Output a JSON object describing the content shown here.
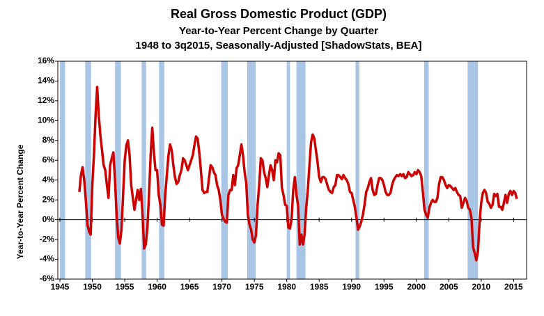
{
  "chart_data": {
    "type": "line",
    "title": "Real Gross Domestic Product (GDP)",
    "subtitle": "Year-to-Year Percent Change by Quarter",
    "subtitle2": "1948 to 3q2015, Seasonally-Adjusted [ShadowStats, BEA]",
    "y_label": "Year-to-Year Percent Change",
    "xlim": [
      1945,
      2017
    ],
    "xticks": [
      1945,
      1950,
      1955,
      1960,
      1965,
      1970,
      1975,
      1980,
      1985,
      1990,
      1995,
      2000,
      2005,
      2010,
      2015
    ],
    "ylim": [
      -6,
      16
    ],
    "yticks": [
      {
        "value": -6,
        "label": "-6%"
      },
      {
        "value": -4,
        "label": "-4%"
      },
      {
        "value": -2,
        "label": "-2%"
      },
      {
        "value": 0,
        "label": "0%"
      },
      {
        "value": 2,
        "label": "2%"
      },
      {
        "value": 4,
        "label": "4%"
      },
      {
        "value": 6,
        "label": "6%"
      },
      {
        "value": 8,
        "label": "8%"
      },
      {
        "value": 10,
        "label": "10%"
      },
      {
        "value": 12,
        "label": "12%"
      },
      {
        "value": 14,
        "label": "14%"
      },
      {
        "value": 16,
        "label": "16%"
      }
    ],
    "grid": false,
    "shading_color": "#a9c5e6",
    "shaded_periods": [
      [
        1945,
        1945.8
      ],
      [
        1948.9,
        1949.8
      ],
      [
        1953.5,
        1954.4
      ],
      [
        1957.6,
        1958.3
      ],
      [
        1960.3,
        1961.1
      ],
      [
        1969.9,
        1970.9
      ],
      [
        1973.9,
        1975.2
      ],
      [
        1980,
        1980.5
      ],
      [
        1981.5,
        1982.9
      ],
      [
        1990.6,
        1991.2
      ],
      [
        2001.2,
        2001.9
      ],
      [
        2007.9,
        2009.5
      ]
    ],
    "x": [
      1948,
      1948.25,
      1948.5,
      1948.75,
      1949,
      1949.25,
      1949.5,
      1949.75,
      1950,
      1950.25,
      1950.5,
      1950.75,
      1951,
      1951.25,
      1951.5,
      1951.75,
      1952,
      1952.25,
      1952.5,
      1952.75,
      1953,
      1953.25,
      1953.5,
      1953.75,
      1954,
      1954.25,
      1954.5,
      1954.75,
      1955,
      1955.25,
      1955.5,
      1955.75,
      1956,
      1956.25,
      1956.5,
      1956.75,
      1957,
      1957.25,
      1957.5,
      1957.75,
      1958,
      1958.25,
      1958.5,
      1958.75,
      1959,
      1959.25,
      1959.5,
      1959.75,
      1960,
      1960.25,
      1960.5,
      1960.75,
      1961,
      1961.25,
      1961.5,
      1961.75,
      1962,
      1962.25,
      1962.5,
      1962.75,
      1963,
      1963.25,
      1963.5,
      1963.75,
      1964,
      1964.25,
      1964.5,
      1964.75,
      1965,
      1965.25,
      1965.5,
      1965.75,
      1966,
      1966.25,
      1966.5,
      1966.75,
      1967,
      1967.25,
      1967.5,
      1967.75,
      1968,
      1968.25,
      1968.5,
      1968.75,
      1969,
      1969.25,
      1969.5,
      1969.75,
      1970,
      1970.25,
      1970.5,
      1970.75,
      1971,
      1971.25,
      1971.5,
      1971.75,
      1972,
      1972.25,
      1972.5,
      1972.75,
      1973,
      1973.25,
      1973.5,
      1973.75,
      1974,
      1974.25,
      1974.5,
      1974.75,
      1975,
      1975.25,
      1975.5,
      1975.75,
      1976,
      1976.25,
      1976.5,
      1976.75,
      1977,
      1977.25,
      1977.5,
      1977.75,
      1978,
      1978.25,
      1978.5,
      1978.75,
      1979,
      1979.25,
      1979.5,
      1979.75,
      1980,
      1980.25,
      1980.5,
      1980.75,
      1981,
      1981.25,
      1981.5,
      1981.75,
      1982,
      1982.25,
      1982.5,
      1982.75,
      1983,
      1983.25,
      1983.5,
      1983.75,
      1984,
      1984.25,
      1984.5,
      1984.75,
      1985,
      1985.25,
      1985.5,
      1985.75,
      1986,
      1986.25,
      1986.5,
      1986.75,
      1987,
      1987.25,
      1987.5,
      1987.75,
      1988,
      1988.25,
      1988.5,
      1988.75,
      1989,
      1989.25,
      1989.5,
      1989.75,
      1990,
      1990.25,
      1990.5,
      1990.75,
      1991,
      1991.25,
      1991.5,
      1991.75,
      1992,
      1992.25,
      1992.5,
      1992.75,
      1993,
      1993.25,
      1993.5,
      1993.75,
      1994,
      1994.25,
      1994.5,
      1994.75,
      1995,
      1995.25,
      1995.5,
      1995.75,
      1996,
      1996.25,
      1996.5,
      1996.75,
      1997,
      1997.25,
      1997.5,
      1997.75,
      1998,
      1998.25,
      1998.5,
      1998.75,
      1999,
      1999.25,
      1999.5,
      1999.75,
      2000,
      2000.25,
      2000.5,
      2000.75,
      2001,
      2001.25,
      2001.5,
      2001.75,
      2002,
      2002.25,
      2002.5,
      2002.75,
      2003,
      2003.25,
      2003.5,
      2003.75,
      2004,
      2004.25,
      2004.5,
      2004.75,
      2005,
      2005.25,
      2005.5,
      2005.75,
      2006,
      2006.25,
      2006.5,
      2006.75,
      2007,
      2007.25,
      2007.5,
      2007.75,
      2008,
      2008.25,
      2008.5,
      2008.75,
      2009,
      2009.25,
      2009.5,
      2009.75,
      2010,
      2010.25,
      2010.5,
      2010.75,
      2011,
      2011.25,
      2011.5,
      2011.75,
      2012,
      2012.25,
      2012.5,
      2012.75,
      2013,
      2013.25,
      2013.5,
      2013.75,
      2014,
      2014.25,
      2014.5,
      2014.75,
      2015,
      2015.25,
      2015.5
    ],
    "series": [
      {
        "color": "#cc0000",
        "values": [
          2.8,
          4.5,
          5.3,
          4.0,
          2.0,
          -0.5,
          -1.2,
          -1.5,
          3.5,
          6.5,
          10.5,
          13.4,
          10.5,
          8.5,
          7.0,
          5.5,
          5.0,
          3.5,
          2.2,
          5.5,
          6.2,
          6.8,
          4.0,
          0.5,
          -1.8,
          -2.4,
          -1.0,
          2.5,
          6.0,
          7.5,
          8.0,
          6.5,
          3.5,
          2.2,
          1.0,
          2.0,
          3.0,
          2.0,
          3.1,
          0.5,
          -2.9,
          -2.5,
          -0.8,
          2.5,
          6.5,
          9.3,
          6.8,
          5.0,
          5.0,
          2.5,
          1.5,
          -0.5,
          -0.6,
          2.5,
          4.5,
          6.5,
          7.6,
          7.0,
          5.5,
          4.3,
          3.6,
          3.8,
          4.5,
          5.0,
          6.2,
          6.0,
          5.5,
          5.0,
          5.5,
          6.0,
          6.5,
          7.5,
          8.4,
          8.2,
          6.8,
          5.0,
          3.0,
          2.7,
          2.8,
          2.8,
          4.2,
          5.5,
          5.3,
          4.8,
          4.5,
          3.5,
          3.0,
          2.0,
          0.5,
          0.1,
          -0.2,
          -0.3,
          2.5,
          3.0,
          3.0,
          4.5,
          3.5,
          5.2,
          5.5,
          6.5,
          7.6,
          6.5,
          4.8,
          3.7,
          0.5,
          -0.5,
          -1.0,
          -2.0,
          -2.3,
          -1.6,
          1.5,
          3.5,
          6.2,
          6.0,
          4.8,
          4.2,
          3.3,
          4.5,
          5.5,
          5.0,
          4.0,
          6.0,
          5.8,
          6.7,
          6.5,
          3.2,
          2.5,
          1.5,
          1.4,
          -0.8,
          -0.9,
          0.1,
          3.0,
          4.3,
          2.5,
          1.4,
          -2.5,
          -1.5,
          -2.5,
          -1.5,
          1.2,
          3.0,
          5.5,
          7.8,
          8.6,
          8.2,
          7.0,
          5.8,
          4.3,
          3.8,
          4.3,
          4.3,
          4.1,
          3.5,
          3.0,
          2.8,
          2.7,
          3.3,
          3.5,
          4.5,
          4.5,
          4.3,
          4.1,
          4.5,
          4.2,
          4.0,
          3.6,
          2.8,
          2.7,
          2.0,
          1.3,
          0.2,
          -1.0,
          -0.7,
          -0.2,
          0.5,
          1.5,
          2.8,
          3.2,
          3.8,
          4.2,
          3.0,
          2.5,
          2.6,
          3.5,
          4.2,
          4.2,
          4.0,
          3.5,
          2.8,
          2.5,
          2.5,
          2.7,
          3.5,
          4.0,
          4.3,
          4.5,
          4.4,
          4.6,
          4.4,
          4.6,
          4.2,
          4.3,
          4.8,
          4.6,
          4.4,
          4.5,
          4.8,
          4.6,
          5.0,
          4.8,
          4.4,
          2.8,
          1.0,
          0.5,
          0.2,
          1.2,
          1.7,
          2.0,
          1.8,
          1.8,
          2.2,
          3.6,
          4.3,
          4.3,
          4.0,
          3.5,
          3.2,
          3.5,
          3.4,
          3.2,
          3.0,
          3.2,
          2.8,
          2.5,
          2.4,
          1.2,
          1.7,
          2.2,
          1.9,
          1.2,
          1.0,
          0.2,
          -2.8,
          -3.4,
          -4.1,
          -3.2,
          -0.2,
          1.7,
          2.7,
          3.0,
          2.7,
          1.8,
          1.6,
          1.2,
          1.5,
          2.6,
          2.4,
          2.6,
          1.3,
          1.3,
          1.0,
          1.7,
          2.5,
          1.7,
          2.6,
          2.9,
          2.5,
          2.9,
          2.7,
          2.1
        ]
      }
    ]
  }
}
